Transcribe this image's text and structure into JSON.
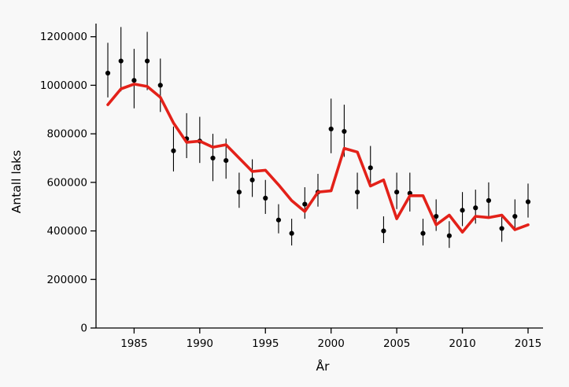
{
  "chart_data": {
    "type": "scatter",
    "title": "",
    "xlabel": "År",
    "ylabel": "Antall laks",
    "grid": false,
    "legend": "none",
    "xlim": [
      1982,
      2016
    ],
    "ylim": [
      0,
      1280000
    ],
    "xticks": [
      1985,
      1990,
      1995,
      2000,
      2005,
      2010,
      2015
    ],
    "yticks": [
      0,
      200000,
      400000,
      600000,
      800000,
      1000000,
      1200000
    ],
    "x": [
      1983,
      1984,
      1985,
      1986,
      1987,
      1988,
      1989,
      1990,
      1991,
      1992,
      1993,
      1994,
      1995,
      1996,
      1997,
      1998,
      1999,
      2000,
      2001,
      2002,
      2003,
      2004,
      2005,
      2006,
      2007,
      2008,
      2009,
      2010,
      2011,
      2012,
      2013,
      2014,
      2015
    ],
    "series": [
      {
        "name": "estimated-count-with-ci",
        "style": "points-with-errorbars",
        "values": [
          1050000,
          1100000,
          1020000,
          1100000,
          1000000,
          730000,
          780000,
          770000,
          700000,
          690000,
          560000,
          610000,
          535000,
          445000,
          390000,
          510000,
          560000,
          820000,
          810000,
          560000,
          660000,
          400000,
          560000,
          555000,
          390000,
          460000,
          380000,
          485000,
          495000,
          525000,
          410000,
          460000,
          520000
        ],
        "lower": [
          950000,
          975000,
          905000,
          980000,
          890000,
          645000,
          700000,
          680000,
          605000,
          615000,
          495000,
          540000,
          470000,
          390000,
          340000,
          450000,
          500000,
          720000,
          705000,
          490000,
          580000,
          350000,
          490000,
          480000,
          340000,
          400000,
          330000,
          420000,
          430000,
          460000,
          355000,
          400000,
          455000
        ],
        "upper": [
          1175000,
          1240000,
          1150000,
          1220000,
          1110000,
          830000,
          885000,
          870000,
          800000,
          780000,
          640000,
          695000,
          610000,
          510000,
          450000,
          580000,
          635000,
          945000,
          920000,
          640000,
          750000,
          460000,
          640000,
          640000,
          450000,
          530000,
          440000,
          560000,
          570000,
          600000,
          470000,
          530000,
          595000
        ]
      },
      {
        "name": "smoothed-trend",
        "style": "line",
        "values": [
          920000,
          985000,
          1005000,
          995000,
          950000,
          845000,
          765000,
          770000,
          745000,
          755000,
          700000,
          645000,
          650000,
          590000,
          525000,
          480000,
          560000,
          565000,
          740000,
          725000,
          585000,
          610000,
          450000,
          545000,
          545000,
          425000,
          465000,
          395000,
          460000,
          455000,
          465000,
          405000,
          425000
        ]
      }
    ],
    "colors": {
      "point": "#000000",
      "errorbar": "#000000",
      "trend_line": "#e32119",
      "axis": "#000000",
      "background": "#f8f8f8"
    }
  }
}
